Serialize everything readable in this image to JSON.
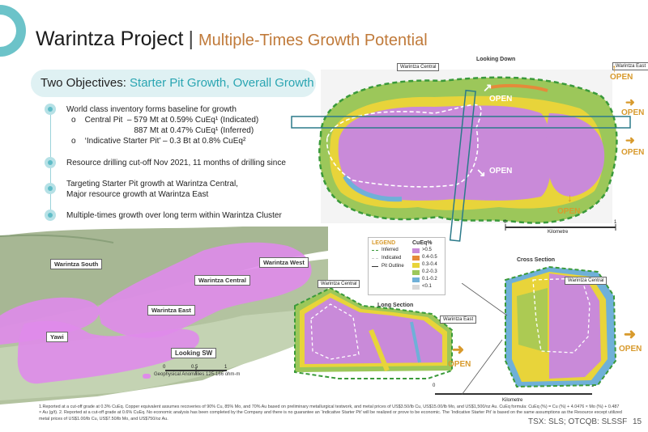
{
  "header": {
    "title": "Warintza Project",
    "separator": "|",
    "subtitle": "Multiple-Times Growth Potential"
  },
  "objectives": {
    "prefix": "Two Objectives: ",
    "highlight": "Starter Pit Growth, Overall Growth"
  },
  "bullets": [
    {
      "lines": [
        "World class inventory forms baseline for growth",
        "o    Central Pit  – 579 Mt at 0.59% CuEq¹ (Indicated)",
        "                              887 Mt at 0.47% CuEq¹ (Inferred)",
        "o    ‘Indicative Starter Pit’ – 0.3 Bt at 0.8% CuEq²"
      ]
    },
    {
      "lines": [
        "Resource drilling cut-off Nov 2021, 11 months of drilling since"
      ]
    },
    {
      "lines": [
        "Targeting Starter Pit growth at Warintza Central,",
        "Major resource growth at Warintza East"
      ]
    },
    {
      "lines": [
        "Multiple-times growth over long term within Warintza Cluster"
      ]
    }
  ],
  "plan_map": {
    "title": "Looking Down",
    "label_central": "Warintza Central",
    "label_east": "Warintza East",
    "open": "OPEN",
    "scale_0": "0",
    "scale_1": "1",
    "scale_unit": "Kilometre"
  },
  "legend": {
    "title": "LEGEND",
    "cueq_title": "CuEq%",
    "items": [
      "Inferred",
      "Indicated",
      "Pit Outline"
    ],
    "grades": [
      ">0.5",
      "0.4-0.5",
      "0.3-0.4",
      "0.2-0.3",
      "0.1-0.2",
      "<0.1"
    ],
    "grade_colors": [
      "#c98ad9",
      "#e58a3a",
      "#e8d43a",
      "#9cc75a",
      "#6fb0d8",
      "#d8d8d8"
    ]
  },
  "topo_map": {
    "labels": [
      "Warintza South",
      "Warintza West",
      "Warintza Central",
      "Warintza East",
      "Yawi"
    ],
    "direction": "Looking SW",
    "scale_0": "0",
    "scale_mid": "0.5",
    "scale_1": "1",
    "anomaly_note": "Geophysical Anomalies 125-166 ohm-m"
  },
  "long_section": {
    "title": "Long Section",
    "label_central": "Warintza Central",
    "label_east": "Warintza East",
    "open": "OPEN",
    "scale_0": "0",
    "scale_1": "1",
    "scale_unit": "Kilometre"
  },
  "cross_section": {
    "title": "Cross Section",
    "label_central": "Warintza Central",
    "open": "OPEN"
  },
  "footer": {
    "notes": "1.Reported at a cut-off grade at 0.3% CuEq. Copper equivalent assumes recoveries of 90% Cu, 85% Mo, and 70% Au based on preliminary metallurgical testwork, and metal prices of US$3.50/lb Cu, US$15.00/lb Mo, and US$1,500/oz Au. CuEq formula: CuEq (%) = Cu (%) + 4.0476 × Mo (%) + 0.487 × Au (g/t). 2. Reported at a cut-off grade at 0.6% CuEq. No economic analysis has been completed by the Company and there is no guarantee an ‘Indicative Starter Pit’ will be realized or prove to be economic. The ‘Indicative Starter Pit’ is based on the same assumptions as the Resource except utilized metal prices of US$1.00/lb Cu, US$7.50/lb Mo, and US$750/oz Au.",
    "ticker": "TSX: SLS; OTCQB: SLSSF",
    "page": "15"
  }
}
